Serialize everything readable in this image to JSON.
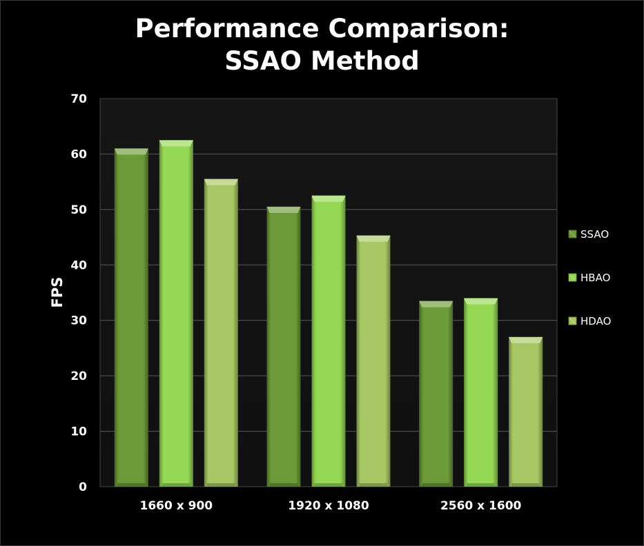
{
  "chart_data": {
    "type": "bar",
    "title_lines": [
      "Performance Comparison:",
      "SSAO Method"
    ],
    "xlabel": "",
    "ylabel": "FPS",
    "categories": [
      "1660 x 900",
      "1920 x 1080",
      "2560 x 1600"
    ],
    "series": [
      {
        "name": "SSAO",
        "values": [
          61,
          50.5,
          33.5
        ],
        "color": "#6c9a38"
      },
      {
        "name": "HBAO",
        "values": [
          62.5,
          52.5,
          34
        ],
        "color": "#95d853"
      },
      {
        "name": "HDAO",
        "values": [
          55.5,
          45.3,
          27
        ],
        "color": "#a7c764"
      }
    ],
    "ylim": [
      0,
      70
    ],
    "yticks": [
      0,
      10,
      20,
      30,
      40,
      50,
      60,
      70
    ],
    "grid": true,
    "legend_position": "right"
  }
}
